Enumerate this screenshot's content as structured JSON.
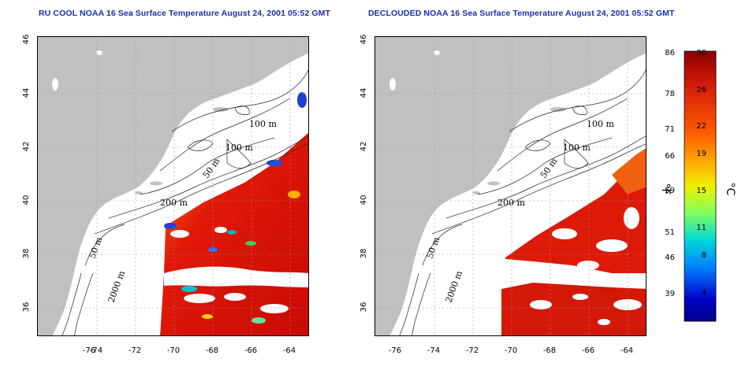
{
  "panels": [
    {
      "id": "left",
      "title": "RU COOL NOAA 16 Sea Surface Temperature August 24, 2001 05:52 GMT"
    },
    {
      "id": "right",
      "title": "DECLOUDED NOAA 16 Sea Surface Temperature August 24, 2001 05:52 GMT"
    }
  ],
  "axes": {
    "lon_ticks": [
      "-76",
      "-74",
      "-72",
      "-70",
      "-68",
      "-66",
      "-64"
    ],
    "lat_ticks": [
      "36",
      "38",
      "40",
      "42",
      "44",
      "46"
    ]
  },
  "contour_labels": [
    "100 m",
    "100 m",
    "50 m",
    "200 m",
    "50 m",
    "2000 m"
  ],
  "colorbar": {
    "fahrenheit_ticks": [
      "86",
      "78",
      "71",
      "66",
      "59",
      "51",
      "46",
      "39"
    ],
    "celsius_ticks": [
      "30",
      "26",
      "22",
      "19",
      "15",
      "11",
      "8",
      "4"
    ],
    "fahrenheit_unit": "°F",
    "celsius_unit": "°C",
    "colors": [
      "#8b0000",
      "#d11a0a",
      "#ff5a00",
      "#ffb000",
      "#f0f000",
      "#80ff60",
      "#00d8d8",
      "#0080ff",
      "#0000c8",
      "#00008b"
    ]
  },
  "map_colors": {
    "land": "#c0c0c0",
    "warm_water": "#e01808",
    "cloud": "#ffffff",
    "grid": "#999999"
  }
}
